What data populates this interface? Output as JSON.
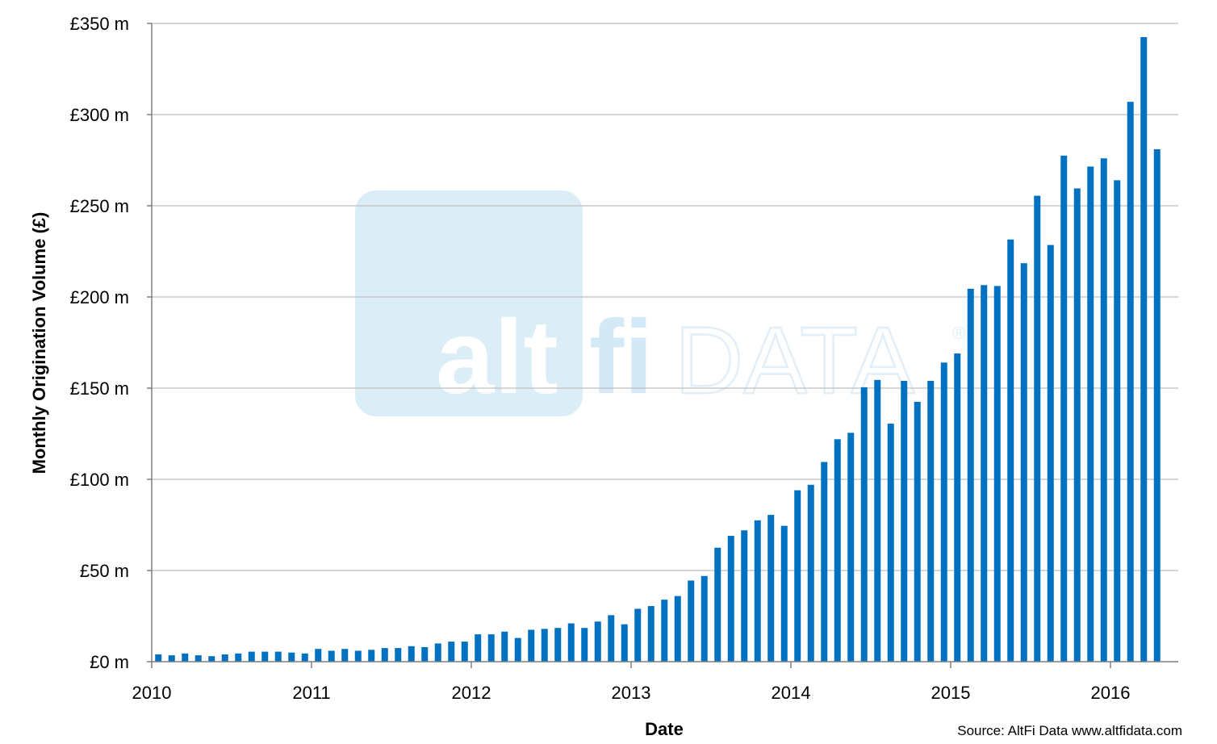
{
  "chart_data": {
    "type": "bar",
    "title": "",
    "xlabel": "Date",
    "ylabel": "Monthly Origination Volume (£)",
    "ylim": [
      0,
      350
    ],
    "y_ticks": [
      {
        "value": 0,
        "label": "£0 m"
      },
      {
        "value": 50,
        "label": "£50 m"
      },
      {
        "value": 100,
        "label": "£100 m"
      },
      {
        "value": 150,
        "label": "£150 m"
      },
      {
        "value": 200,
        "label": "£200 m"
      },
      {
        "value": 250,
        "label": "£250 m"
      },
      {
        "value": 300,
        "label": "£300 m"
      },
      {
        "value": 350,
        "label": "£350 m"
      }
    ],
    "x_ticks": [
      "2010",
      "2011",
      "2012",
      "2013",
      "2014",
      "2015",
      "2016"
    ],
    "x_start": "2010-01",
    "grid": true,
    "legend": "none",
    "bar_color": "#0070C0",
    "series": [
      {
        "values": [
          4,
          3.5,
          4.5,
          3.5,
          3,
          4,
          4.5,
          5.5,
          5.5,
          5.5,
          5,
          4.5,
          7,
          6,
          7,
          6,
          6.5,
          7.5,
          7.5,
          8.5,
          8,
          10,
          11,
          11,
          15,
          15,
          16.5,
          13,
          17.5,
          18,
          18.5,
          21,
          18.5,
          22,
          25.5,
          20.5,
          29,
          30.5,
          34,
          36,
          44.5,
          47,
          62.5,
          69,
          72,
          77.5,
          80.5,
          74.5,
          94,
          97,
          109.5,
          122,
          125.5,
          150.5,
          154.5,
          130.5,
          154,
          142.5,
          154,
          164,
          169,
          204.5,
          206.5,
          206,
          231.5,
          218.5,
          255.5,
          228.5,
          277.5,
          259.5,
          271.5,
          276,
          264,
          307,
          342.5,
          281
        ]
      }
    ]
  },
  "watermark": {
    "alt": "alt",
    "fi": "fi",
    "data": "DATA",
    "reg": "®"
  },
  "source": "Source: AltFi Data www.altfidata.com"
}
